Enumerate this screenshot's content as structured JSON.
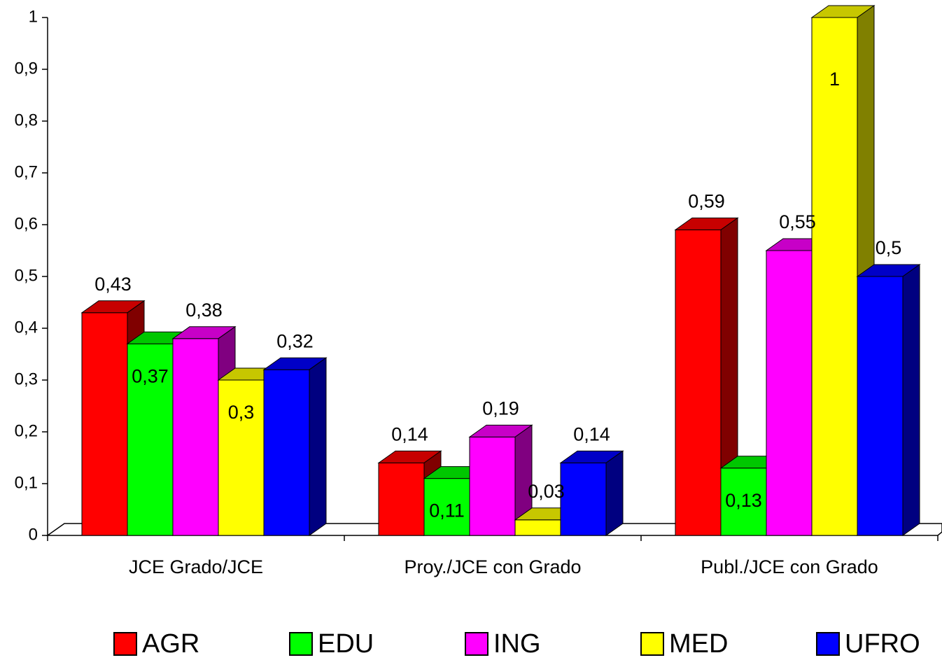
{
  "chart_data": {
    "type": "bar3d",
    "categories": [
      "JCE Grado/JCE",
      "Proy./JCE con Grado",
      "Publ./JCE con Grado"
    ],
    "series": [
      {
        "name": "AGR",
        "color": "#ff0000",
        "values": [
          0.43,
          0.14,
          0.59
        ],
        "value_labels": [
          "0,43",
          "0,14",
          "0,59"
        ]
      },
      {
        "name": "EDU",
        "color": "#00ff00",
        "values": [
          0.37,
          0.11,
          0.13
        ],
        "value_labels": [
          "0,37",
          "0,11",
          "0,13"
        ]
      },
      {
        "name": "ING",
        "color": "#ff00ff",
        "values": [
          0.38,
          0.19,
          0.55
        ],
        "value_labels": [
          "0,38",
          "0,19",
          "0,55"
        ]
      },
      {
        "name": "MED",
        "color": "#ffff00",
        "values": [
          0.3,
          0.03,
          1
        ],
        "value_labels": [
          "0,3",
          "0,03",
          "1"
        ]
      },
      {
        "name": "UFRO",
        "color": "#0000ff",
        "values": [
          0.32,
          0.14,
          0.5
        ],
        "value_labels": [
          "0,32",
          "0,14",
          "0,5"
        ]
      }
    ],
    "ylim": [
      0,
      1
    ],
    "yticks": [
      0,
      {
        "value": 0.1,
        "label": "0,1"
      },
      {
        "value": 0.2,
        "label": "0,2"
      },
      {
        "value": 0.3,
        "label": "0,3"
      },
      {
        "value": 0.4,
        "label": "0,4"
      },
      {
        "value": 0.5,
        "label": "0,5"
      },
      {
        "value": 0.6,
        "label": "0,6"
      },
      {
        "value": 0.7,
        "label": "0,7"
      },
      {
        "value": 0.8,
        "label": "0,8"
      },
      {
        "value": 0.9,
        "label": "0,9"
      },
      1
    ],
    "grid": false,
    "legend": "bottom"
  }
}
